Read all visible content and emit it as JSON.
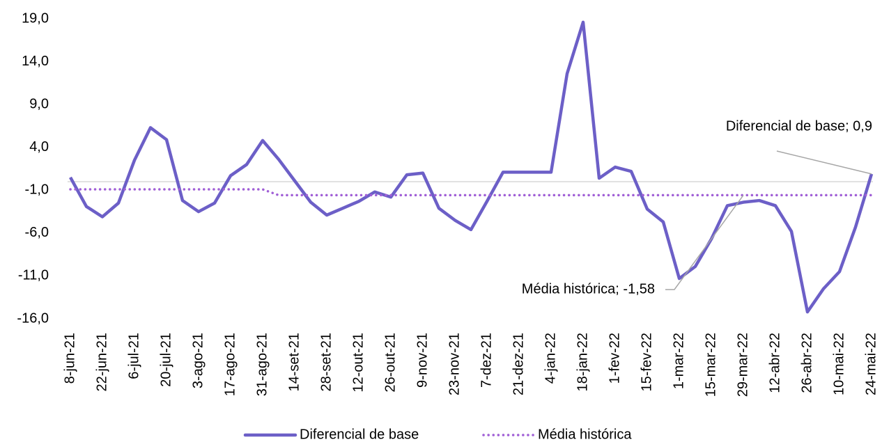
{
  "chart_data": {
    "type": "line",
    "categories": [
      "8-jun-21",
      null,
      "22-jun-21",
      null,
      "6-jul-21",
      null,
      "20-jul-21",
      null,
      "3-ago-21",
      null,
      "17-ago-21",
      null,
      "31-ago-21",
      null,
      "14-set-21",
      null,
      "28-set-21",
      null,
      "12-out-21",
      null,
      "26-out-21",
      null,
      "9-nov-21",
      null,
      "23-nov-21",
      null,
      "7-dez-21",
      null,
      "21-dez-21",
      null,
      "4-jan-22",
      null,
      "18-jan-22",
      null,
      "1-fev-22",
      null,
      "15-fev-22",
      null,
      "1-mar-22",
      null,
      "15-mar-22",
      null,
      "29-mar-22",
      null,
      "12-abr-22",
      null,
      "26-abr-22",
      null,
      "10-mai-22",
      null,
      "24-mai-22"
    ],
    "series": [
      {
        "name": "Diferencial de base",
        "color": "#6c5fc7",
        "style": "solid",
        "values": [
          0.5,
          -2.9,
          -4.1,
          -2.5,
          2.5,
          6.3,
          4.9,
          -2.2,
          -3.5,
          -2.5,
          0.7,
          2.0,
          4.8,
          2.6,
          0.1,
          -2.4,
          -3.9,
          -3.1,
          -2.3,
          -1.2,
          -1.8,
          0.8,
          1.0,
          -3.1,
          -4.5,
          -5.6,
          -2.3,
          1.1,
          1.1,
          1.1,
          1.1,
          12.6,
          18.6,
          0.4,
          1.7,
          1.2,
          -3.2,
          -4.7,
          -11.3,
          -9.9,
          -6.7,
          -2.8,
          -2.4,
          -2.2,
          -2.8,
          -5.8,
          -15.2,
          -12.5,
          -10.5,
          -5.3,
          0.9
        ]
      },
      {
        "name": "Média histórica",
        "color": "#a05fd6",
        "style": "dotted",
        "values": [
          -0.9,
          -0.9,
          -0.9,
          -0.9,
          -0.9,
          -0.9,
          -0.9,
          -0.9,
          -0.9,
          -0.9,
          -0.9,
          -0.9,
          -0.9,
          -1.58,
          -1.58,
          -1.58,
          -1.58,
          -1.58,
          -1.58,
          -1.58,
          -1.58,
          -1.58,
          -1.58,
          -1.58,
          -1.58,
          -1.58,
          -1.58,
          -1.58,
          -1.58,
          -1.58,
          -1.58,
          -1.58,
          -1.58,
          -1.58,
          -1.58,
          -1.58,
          -1.58,
          -1.58,
          -1.58,
          -1.58,
          -1.58,
          -1.58,
          -1.58,
          -1.58,
          -1.58,
          -1.58,
          -1.58,
          -1.58,
          -1.58,
          -1.58,
          -1.58
        ]
      }
    ],
    "annotations": [
      {
        "text": "Diferencial de base; 0,9",
        "series": 0,
        "index": 50
      },
      {
        "text": "Média histórica; -1,58",
        "series": 1,
        "index": 42
      }
    ],
    "ylim": [
      -16,
      19
    ],
    "yticks": [
      {
        "value": -16,
        "label": "-16,0"
      },
      {
        "value": -11,
        "label": "-11,0"
      },
      {
        "value": -6,
        "label": "-6,0"
      },
      {
        "value": -1,
        "label": "-1,0"
      },
      {
        "value": 4,
        "label": "4,0"
      },
      {
        "value": 9,
        "label": "9,0"
      },
      {
        "value": 14,
        "label": "14,0"
      },
      {
        "value": 19,
        "label": "19,0"
      }
    ],
    "grid": false,
    "legend": "bottom"
  }
}
